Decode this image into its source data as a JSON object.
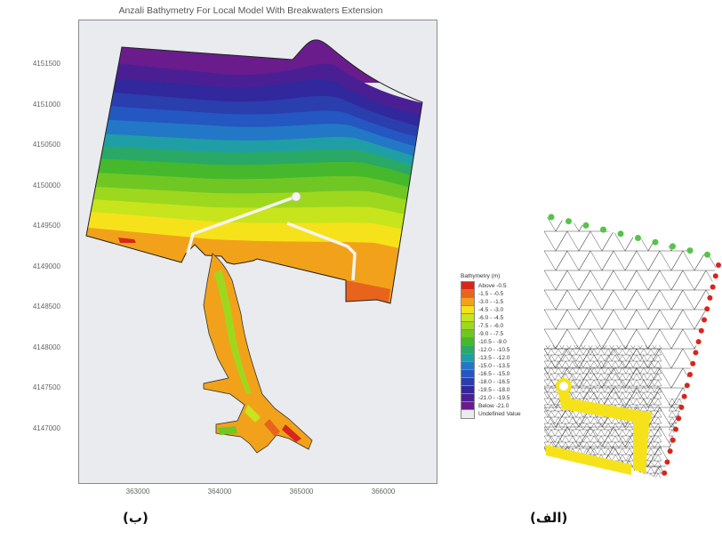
{
  "panel_b": {
    "title": "Anzali Bathymetry For Local Model With Breakwaters Extension",
    "y_ticks": [
      "4151500",
      "4151000",
      "4150500",
      "4150000",
      "4149500",
      "4149000",
      "4148500",
      "4148000",
      "4147500",
      "4147000"
    ],
    "x_ticks": [
      "363000",
      "364000",
      "365000",
      "366000"
    ],
    "caption": "(ب)"
  },
  "legend": {
    "title": "Bathymetry (m)",
    "entries": [
      {
        "label": "Above -0.5",
        "color": "#d8261c"
      },
      {
        "label": "-1.5 - -0.5",
        "color": "#e8641c"
      },
      {
        "label": "-3.0 - -1.5",
        "color": "#f2a21a"
      },
      {
        "label": "-4.5 - -3.0",
        "color": "#f6e21a"
      },
      {
        "label": "-6.0 - -4.5",
        "color": "#c8e41c"
      },
      {
        "label": "-7.5 - -6.0",
        "color": "#9ed81e"
      },
      {
        "label": "-9.0 - -7.5",
        "color": "#70c724"
      },
      {
        "label": "-10.5 - -9.0",
        "color": "#46b82c"
      },
      {
        "label": "-12.0 - -10.5",
        "color": "#2aa866"
      },
      {
        "label": "-13.5 - -12.0",
        "color": "#1f9fa5"
      },
      {
        "label": "-15.0 - -13.5",
        "color": "#2278c6"
      },
      {
        "label": "-16.5 - -15.0",
        "color": "#2457c2"
      },
      {
        "label": "-18.0 - -16.5",
        "color": "#2a3eae"
      },
      {
        "label": "-19.5 - -18.0",
        "color": "#30289c"
      },
      {
        "label": "-21.0 - -19.5",
        "color": "#4b1f94"
      },
      {
        "label": "Below -21.0",
        "color": "#6a1c8c"
      },
      {
        "label": "Undefined Value",
        "color": "#e9ebee"
      }
    ]
  },
  "panel_a": {
    "caption": "(الف)"
  }
}
